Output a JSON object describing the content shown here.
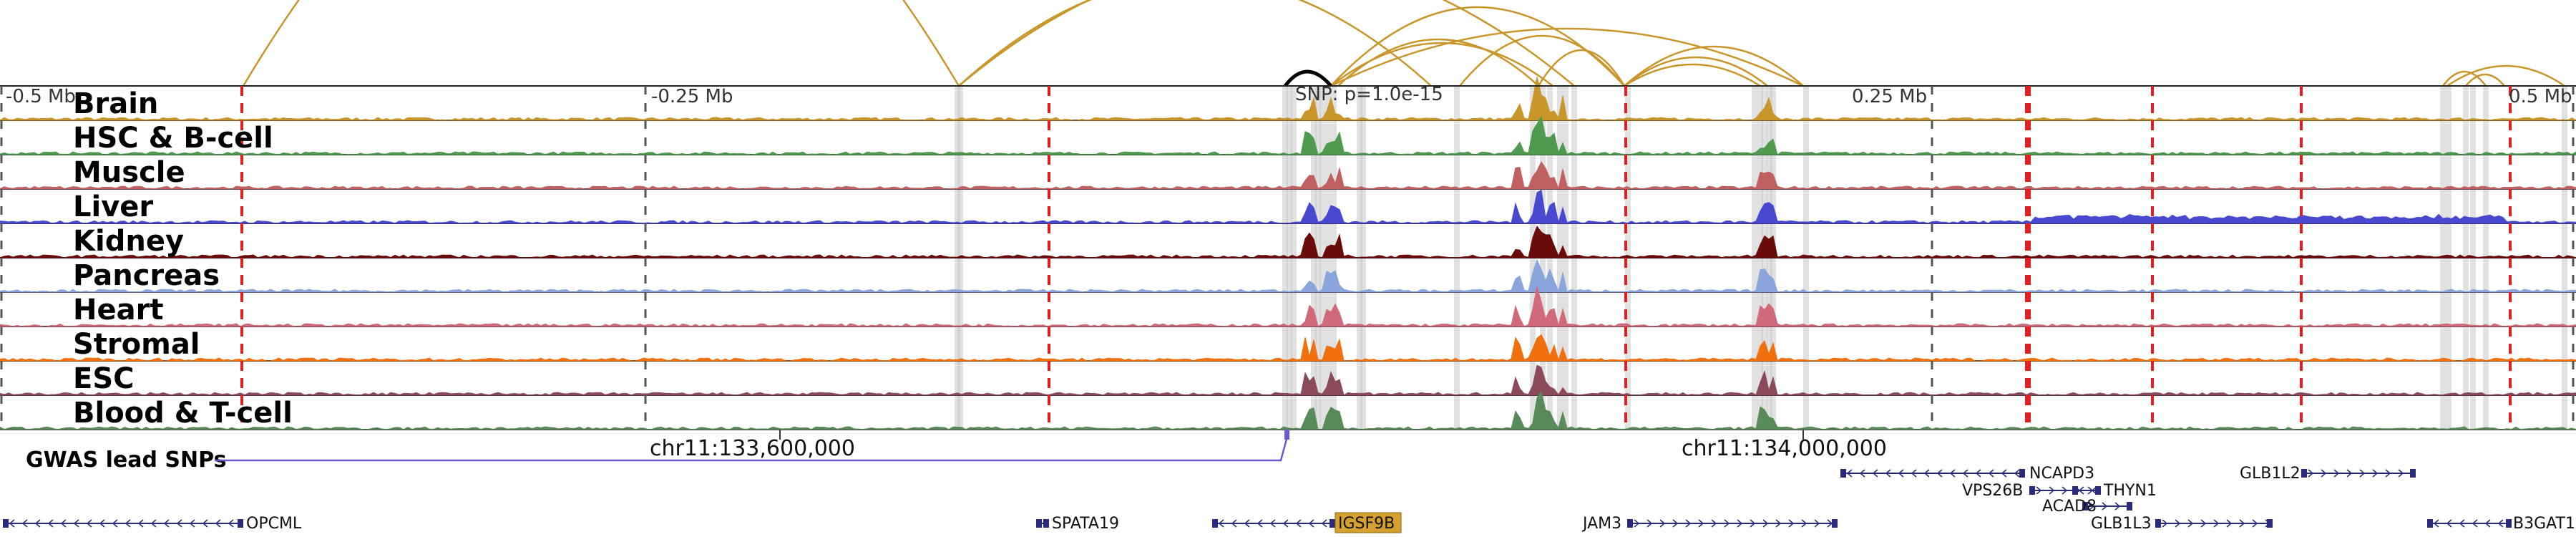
{
  "axis_ticks": [
    {
      "label": "-0.5 Mb",
      "x": -0.5
    },
    {
      "label": "-0.25 Mb",
      "x": -0.25
    },
    {
      "label": "0.25 Mb",
      "x": 0.25
    },
    {
      "label": "0.5 Mb",
      "x": 0.5
    }
  ],
  "coordinates": [
    {
      "label": "chr11:133,600,000",
      "pos": 133600000
    },
    {
      "label": "chr11:134,000,000",
      "pos": 134000000
    }
  ],
  "snp_label": "SNP: p=1.0e-15",
  "gwas_label": "GWAS lead SNPs",
  "colors": {
    "loops": "#c8962a",
    "loop_highlight": "#000000",
    "red_marks": "#e02020",
    "gwas": "#6a5acd",
    "gene": "#2a2a7a",
    "highlight_gene": "#d4a030"
  },
  "tracks": [
    {
      "name": "Brain",
      "color": "#c8962a"
    },
    {
      "name": "HSC & B-cell",
      "color": "#4e9a4e"
    },
    {
      "name": "Muscle",
      "color": "#c06060"
    },
    {
      "name": "Liver",
      "color": "#4848d0"
    },
    {
      "name": "Kidney",
      "color": "#6a0a0a"
    },
    {
      "name": "Pancreas",
      "color": "#8aa4dc"
    },
    {
      "name": "Heart",
      "color": "#d06a7a"
    },
    {
      "name": "Stromal",
      "color": "#f07010"
    },
    {
      "name": "ESC",
      "color": "#8a4a5a"
    },
    {
      "name": "Blood & T-cell",
      "color": "#5a8a5a"
    }
  ],
  "genes": [
    {
      "name": "OPCML",
      "row": 2
    },
    {
      "name": "SPATA19",
      "row": 2
    },
    {
      "name": "IGSF9B",
      "row": 2,
      "highlight": true
    },
    {
      "name": "JAM3",
      "row": 2
    },
    {
      "name": "NCAPD3",
      "row": 0
    },
    {
      "name": "VPS26B",
      "row": 1
    },
    {
      "name": "THYN1",
      "row": 1
    },
    {
      "name": "ACAD8",
      "row": 1
    },
    {
      "name": "GLB1L3",
      "row": 2
    },
    {
      "name": "GLB1L2",
      "row": 0
    },
    {
      "name": "B3GAT1",
      "row": 2
    }
  ]
}
